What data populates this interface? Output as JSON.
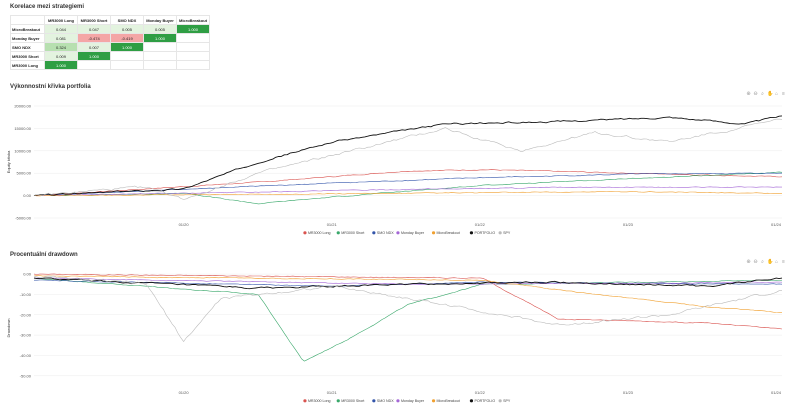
{
  "correlation": {
    "title": "Korelace mezi strategiemi",
    "columns": [
      "MR3000 Long",
      "MR3000 Short",
      "SMO NDX",
      "Monday Buyer",
      "MicroBreakout"
    ],
    "rows": [
      {
        "label": "MicroBreakout",
        "values": [
          "0.044",
          "0.047",
          "0.005",
          "0.005",
          "1.000"
        ]
      },
      {
        "label": "Monday Buyer",
        "values": [
          "0.081",
          "-0.474",
          "-0.419",
          "1.000",
          ""
        ]
      },
      {
        "label": "SMO NDX",
        "values": [
          "0.324",
          "0.007",
          "1.000",
          "",
          ""
        ]
      },
      {
        "label": "MR3000 Short",
        "values": [
          "0.009",
          "1.000",
          "",
          "",
          ""
        ]
      },
      {
        "label": "MR3000 Long",
        "values": [
          "1.000",
          "",
          "",
          "",
          ""
        ]
      }
    ]
  },
  "toolbar_icons": [
    "zoom-in-icon",
    "zoom-out-icon",
    "magnifier-icon",
    "pan-icon",
    "home-icon",
    "menu-icon"
  ],
  "chart_data": [
    {
      "type": "line",
      "title": "Výkonnostní křivka portfolia",
      "ylabel": "Equity křivka",
      "xlabel": "",
      "ylim": [
        -5000,
        20000
      ],
      "yticks": [
        "-5000.00",
        "0.00",
        "5000.00",
        "10000.00",
        "15000.00",
        "20000.00"
      ],
      "x_ticks": [
        "01/20",
        "01/21",
        "01/22",
        "01/23",
        "01/24"
      ],
      "legend_position": "bottom",
      "series": [
        {
          "name": "MR3000 Long",
          "color": "#d9534f",
          "x": [
            0,
            0.3,
            0.5,
            0.6,
            0.8,
            1.0
          ],
          "values": [
            0,
            3000,
            5500,
            5800,
            5000,
            4200
          ]
        },
        {
          "name": "MR3000 Short",
          "color": "#3aa86b",
          "x": [
            0,
            0.2,
            0.3,
            0.4,
            0.6,
            0.8,
            1.0
          ],
          "values": [
            0,
            500,
            -1800,
            -300,
            2300,
            3800,
            5200
          ]
        },
        {
          "name": "SMO NDX",
          "color": "#3355aa",
          "x": [
            0,
            0.4,
            0.6,
            0.8,
            1.0
          ],
          "values": [
            0,
            2800,
            4000,
            4800,
            5000
          ]
        },
        {
          "name": "Monday Buyer",
          "color": "#a467d6",
          "x": [
            0,
            0.3,
            0.5,
            0.7,
            1.0
          ],
          "values": [
            0,
            800,
            1400,
            1800,
            1900
          ]
        },
        {
          "name": "MicroBreakout",
          "color": "#f0a030",
          "x": [
            0,
            0.5,
            0.8,
            1.0
          ],
          "values": [
            0,
            500,
            900,
            500
          ]
        },
        {
          "name": "PORTFOLIO",
          "color": "#111111",
          "x": [
            0,
            0.2,
            0.3,
            0.4,
            0.55,
            0.7,
            0.85,
            0.95,
            1.0
          ],
          "values": [
            0,
            1500,
            7500,
            12000,
            16000,
            16500,
            17500,
            16000,
            17800
          ]
        },
        {
          "name": "SPY",
          "color": "#bbbbbb",
          "x": [
            0,
            0.15,
            0.2,
            0.3,
            0.4,
            0.55,
            0.65,
            0.75,
            0.85,
            1.0
          ],
          "values": [
            0,
            2000,
            -800,
            5000,
            9000,
            15000,
            10000,
            14000,
            12000,
            17000
          ]
        }
      ]
    },
    {
      "type": "line",
      "title": "Procentuální drawdown",
      "ylabel": "Drawdown",
      "xlabel": "",
      "ylim": [
        -55,
        2
      ],
      "yticks": [
        "-50.00",
        "-40.00",
        "-30.00",
        "-20.00",
        "-10.00",
        "0.00"
      ],
      "x_ticks": [
        "01/20",
        "01/21",
        "01/22",
        "01/23",
        "01/24"
      ],
      "legend_position": "bottom",
      "series": [
        {
          "name": "MR3000 Long",
          "color": "#d9534f",
          "x": [
            0,
            0.6,
            0.7,
            0.9,
            1.0
          ],
          "values": [
            0,
            -2,
            -22,
            -24,
            -27
          ]
        },
        {
          "name": "MR3000 Short",
          "color": "#3aa86b",
          "x": [
            0,
            0.3,
            0.36,
            0.42,
            0.5,
            0.6,
            1.0
          ],
          "values": [
            -2,
            -10,
            -43,
            -32,
            -15,
            -5,
            -3
          ]
        },
        {
          "name": "SMO NDX",
          "color": "#3355aa",
          "x": [
            0,
            0.4,
            0.6,
            1.0
          ],
          "values": [
            -3,
            -6,
            -4,
            -5
          ]
        },
        {
          "name": "Monday Buyer",
          "color": "#a467d6",
          "x": [
            0,
            0.5,
            1.0
          ],
          "values": [
            -2,
            -5,
            -4
          ]
        },
        {
          "name": "MicroBreakout",
          "color": "#f0a030",
          "x": [
            0,
            0.6,
            0.75,
            0.9,
            1.0
          ],
          "values": [
            -1,
            -3,
            -10,
            -16,
            -19
          ]
        },
        {
          "name": "PORTFOLIO",
          "color": "#111111",
          "x": [
            0,
            0.3,
            0.5,
            0.7,
            0.9,
            1.0
          ],
          "values": [
            -2,
            -7,
            -5,
            -4,
            -6,
            -2
          ]
        },
        {
          "name": "SPY",
          "color": "#bbbbbb",
          "x": [
            0,
            0.15,
            0.2,
            0.25,
            0.4,
            0.55,
            0.7,
            0.85,
            1.0
          ],
          "values": [
            -1,
            -5,
            -33,
            -12,
            -6,
            -15,
            -25,
            -20,
            -8
          ]
        }
      ]
    }
  ]
}
